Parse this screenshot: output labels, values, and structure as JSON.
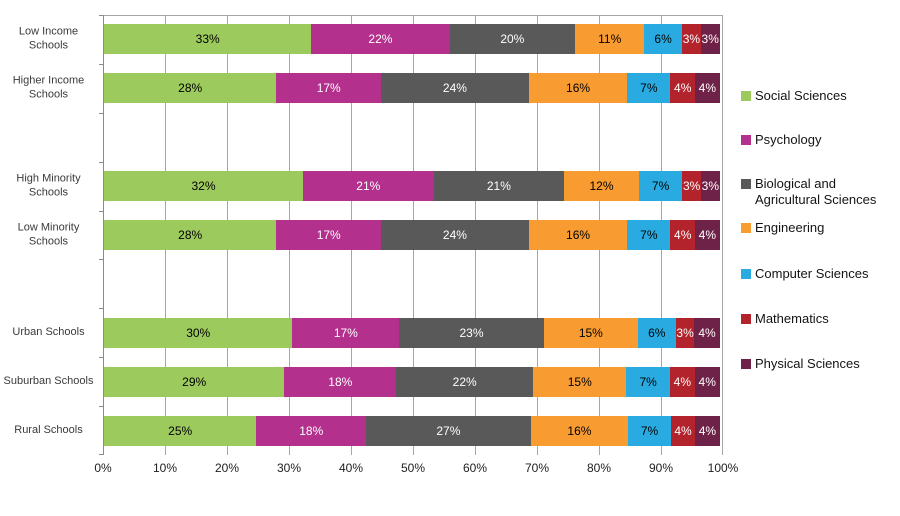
{
  "chart_data": {
    "type": "bar",
    "stacked": true,
    "orientation": "horizontal",
    "title": "",
    "xlabel": "",
    "ylabel": "",
    "grid": true,
    "legend_position": "right",
    "value_suffix": "%",
    "x_axis": {
      "range": [
        0,
        100
      ],
      "ticks": [
        "0%",
        "10%",
        "20%",
        "30%",
        "40%",
        "50%",
        "60%",
        "70%",
        "80%",
        "90%",
        "100%"
      ]
    },
    "series": [
      {
        "name": "Social Sciences",
        "color": "#9CCA5D",
        "text_color": "#000000"
      },
      {
        "name": "Psychology",
        "color": "#B3308C",
        "text_color": "#FFFFFF"
      },
      {
        "name": "Biological and Agricultural Sciences",
        "color": "#595959",
        "text_color": "#FFFFFF"
      },
      {
        "name": "Engineering",
        "color": "#F89B31",
        "text_color": "#000000"
      },
      {
        "name": "Computer Sciences",
        "color": "#29ABE2",
        "text_color": "#000000"
      },
      {
        "name": "Mathematics",
        "color": "#B2232B",
        "text_color": "#FFFFFF"
      },
      {
        "name": "Physical Sciences",
        "color": "#6E2248",
        "text_color": "#FFFFFF"
      }
    ],
    "rows": [
      {
        "label": "Low Income Schools",
        "values": [
          33,
          22,
          20,
          11,
          6,
          3,
          3
        ]
      },
      {
        "label": "Higher Income Schools",
        "values": [
          28,
          17,
          24,
          16,
          7,
          4,
          4
        ]
      },
      {
        "label": "",
        "blank": true
      },
      {
        "label": "High Minority Schools",
        "values": [
          32,
          21,
          21,
          12,
          7,
          3,
          3
        ]
      },
      {
        "label": "Low Minority Schools",
        "values": [
          28,
          17,
          24,
          16,
          7,
          4,
          4
        ]
      },
      {
        "label": "",
        "blank": true
      },
      {
        "label": "Urban Schools",
        "values": [
          30,
          17,
          23,
          15,
          6,
          3,
          4
        ]
      },
      {
        "label": "Suburban Schools",
        "values": [
          29,
          18,
          22,
          15,
          7,
          4,
          4
        ]
      },
      {
        "label": "Rural Schools",
        "values": [
          25,
          18,
          27,
          16,
          7,
          4,
          4
        ]
      }
    ]
  },
  "colors": {
    "background": "#FFFFFF",
    "gridline": "#A6A6A6",
    "axis": "#8C8C8C",
    "tick_text": "#1F1F1F",
    "category_text": "#3A3A3A",
    "legend_text": "#141414"
  }
}
